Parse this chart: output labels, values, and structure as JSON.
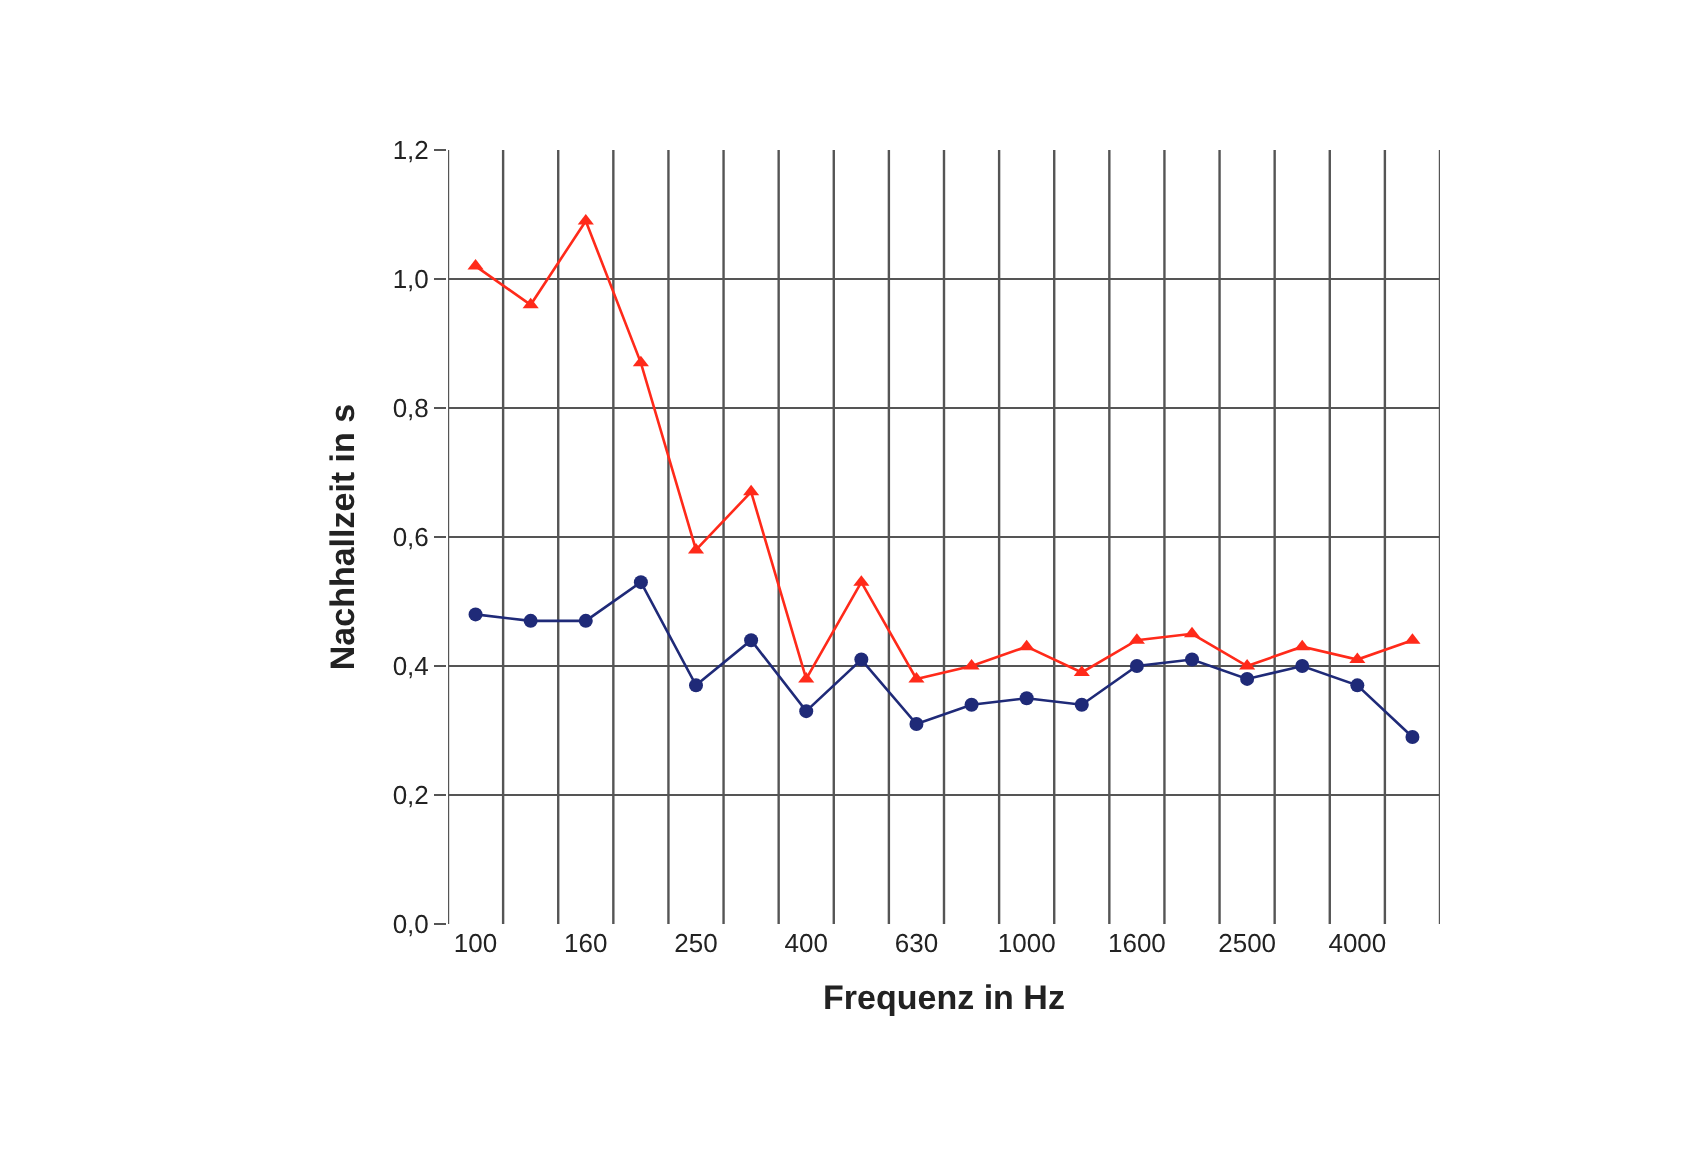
{
  "chart_data": {
    "type": "line",
    "xlabel": "Frequenz in Hz",
    "ylabel": "Nachhallzeit in s",
    "categories": [
      "100",
      null,
      "160",
      null,
      "250",
      null,
      "400",
      null,
      "630",
      null,
      "1000",
      null,
      "1600",
      null,
      "2500",
      null,
      "4000",
      null
    ],
    "series": [
      {
        "color": "#ff2a1a",
        "marker": "triangle",
        "values": [
          1.02,
          0.96,
          1.09,
          0.87,
          0.58,
          0.67,
          0.38,
          0.53,
          0.38,
          0.4,
          0.43,
          0.39,
          0.44,
          0.45,
          0.4,
          0.43,
          0.41,
          0.44
        ]
      },
      {
        "color": "#1f2a78",
        "marker": "circle",
        "values": [
          0.48,
          0.47,
          0.47,
          0.53,
          0.37,
          0.44,
          0.33,
          0.41,
          0.31,
          0.34,
          0.35,
          0.34,
          0.4,
          0.41,
          0.38,
          0.4,
          0.37,
          0.29
        ]
      }
    ],
    "ylim": [
      0,
      1.2
    ],
    "yticks": [
      {
        "value": 0,
        "label": "0,0"
      },
      {
        "value": 0.2,
        "label": "0,2"
      },
      {
        "value": 0.4,
        "label": "0,4"
      },
      {
        "value": 0.6,
        "label": "0,6"
      },
      {
        "value": 0.8,
        "label": "0,8"
      },
      {
        "value": 1.0,
        "label": "1,0"
      },
      {
        "value": 1.2,
        "label": "1,2"
      }
    ],
    "grid": true,
    "line_style": "solid"
  }
}
